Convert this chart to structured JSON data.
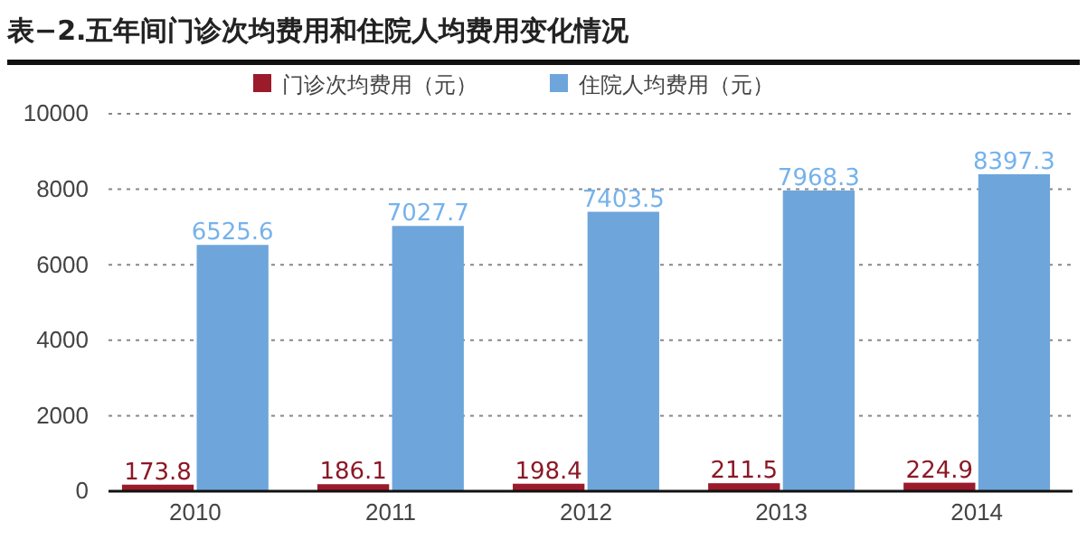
{
  "chart_data": {
    "type": "bar",
    "title": "表−2.五年间门诊次均费用和住院人均费用变化情况",
    "categories": [
      "2010",
      "2011",
      "2012",
      "2013",
      "2014"
    ],
    "series": [
      {
        "name": "门诊次均费用（元）",
        "color": "#9b1b2a",
        "values": [
          173.8,
          186.1,
          198.4,
          211.5,
          224.9
        ]
      },
      {
        "name": "住院人均费用（元）",
        "color": "#6ea6db",
        "values": [
          6525.6,
          7027.7,
          7403.5,
          7968.3,
          8397.3
        ]
      }
    ],
    "ylim": [
      0,
      10000
    ],
    "yticks": [
      0,
      2000,
      4000,
      6000,
      8000,
      10000
    ],
    "grid": "y",
    "legend": "top",
    "data_labels": true
  }
}
